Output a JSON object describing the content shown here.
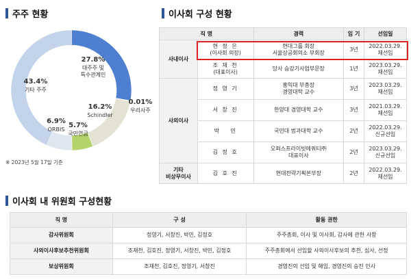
{
  "shareholders": {
    "title": "주주 현황",
    "note": "※ 2023년 5월 17일 기준",
    "segments": [
      {
        "name": "대주주 및 특수관계인",
        "pct": "27.8%",
        "value": 27.8,
        "color": "#4e7fd1",
        "line1": "대주주 및",
        "line2": "특수관계인"
      },
      {
        "name": "우리사주",
        "pct": "0.01%",
        "value": 0.01,
        "color": "#f5b400",
        "line1": "우리사주",
        "line2": ""
      },
      {
        "name": "Schindler",
        "pct": "16.2%",
        "value": 16.2,
        "color": "#e4e2d2",
        "line1": "Schindler",
        "line2": ""
      },
      {
        "name": "국민연금",
        "pct": "5.7%",
        "value": 5.7,
        "color": "#b3d36b",
        "line1": "국민연금",
        "line2": ""
      },
      {
        "name": "ORBIS",
        "pct": "6.9%",
        "value": 6.9,
        "color": "#dfe6ef",
        "line1": "ORBIS",
        "line2": ""
      },
      {
        "name": "기타 주주",
        "pct": "43.4%",
        "value": 43.4,
        "color": "#c2d3ea",
        "line1": "기타 주주",
        "line2": ""
      }
    ]
  },
  "board": {
    "title": "이사회 구성 현황",
    "headers": [
      "직 명",
      "경력",
      "임 기",
      "선임일"
    ],
    "rows": [
      {
        "cat": "사내이사",
        "name": "현 정 은",
        "sub": "(이사회 의장)",
        "career1": "현대그룹 회장",
        "career2": "서울상공회의소 부회장",
        "term": "3년",
        "date": "2022.03.29.",
        "status": "재선임"
      },
      {
        "name": "조 재 천",
        "sub": "(대표이사)",
        "career1": "당사 승강기사업부문장",
        "career2": "",
        "term": "1년",
        "date": "2023.03.29.",
        "status": "재선임"
      },
      {
        "cat": "사외이사",
        "name": "정 영 기",
        "sub": "",
        "career1": "홍익대 부총장",
        "career2": "경영대학 교수",
        "term": "3년",
        "date": "2023.03.29.",
        "status": "재선임"
      },
      {
        "name": "서 창 진",
        "sub": "",
        "career1": "한양대 경영대학 교수",
        "career2": "",
        "term": "3년",
        "date": "2021.03.29.",
        "status": "재선임"
      },
      {
        "name": "박　 민",
        "sub": "",
        "career1": "국민대 법과대학 교수",
        "career2": "",
        "term": "2년",
        "date": "2022.03.29.",
        "status": "신규선임"
      },
      {
        "name": "김 정 호",
        "sub": "",
        "career1": "오퍼스프라이빗에쿼티㈜",
        "career2": "대표이사",
        "term": "2년",
        "date": "2023.03.29.",
        "status": "신규선임"
      },
      {
        "cat": "기타",
        "cat2": "비상무이사",
        "name": "김 호 진",
        "sub": "",
        "career1": "현대전략기획본부장",
        "career2": "",
        "term": "2년",
        "date": "2022.03.29.",
        "status": "재선임"
      }
    ]
  },
  "committee": {
    "title": "이사회 내 위원회 구성현황",
    "headers": [
      "직 명",
      "구 성",
      "활동 권한"
    ],
    "rows": [
      {
        "name": "감사위원회",
        "members": "정영기, 서창진, 박민, 김정호",
        "role": "주주총회, 이사 및 이사회, 감사에 관한 사항"
      },
      {
        "name": "사외이사후보추천위원회",
        "members": "조재천, 김호진, 정영기, 서창진, 박민, 김정호",
        "role": "주주총회에서 선임할 사외이사후보의 추천, 심사, 선정"
      },
      {
        "name": "보상위원회",
        "members": "조재천, 김호진, 정영기, 서창진",
        "role": "경영진의 선임 및 해임, 경영진의 승진 인사"
      }
    ]
  }
}
